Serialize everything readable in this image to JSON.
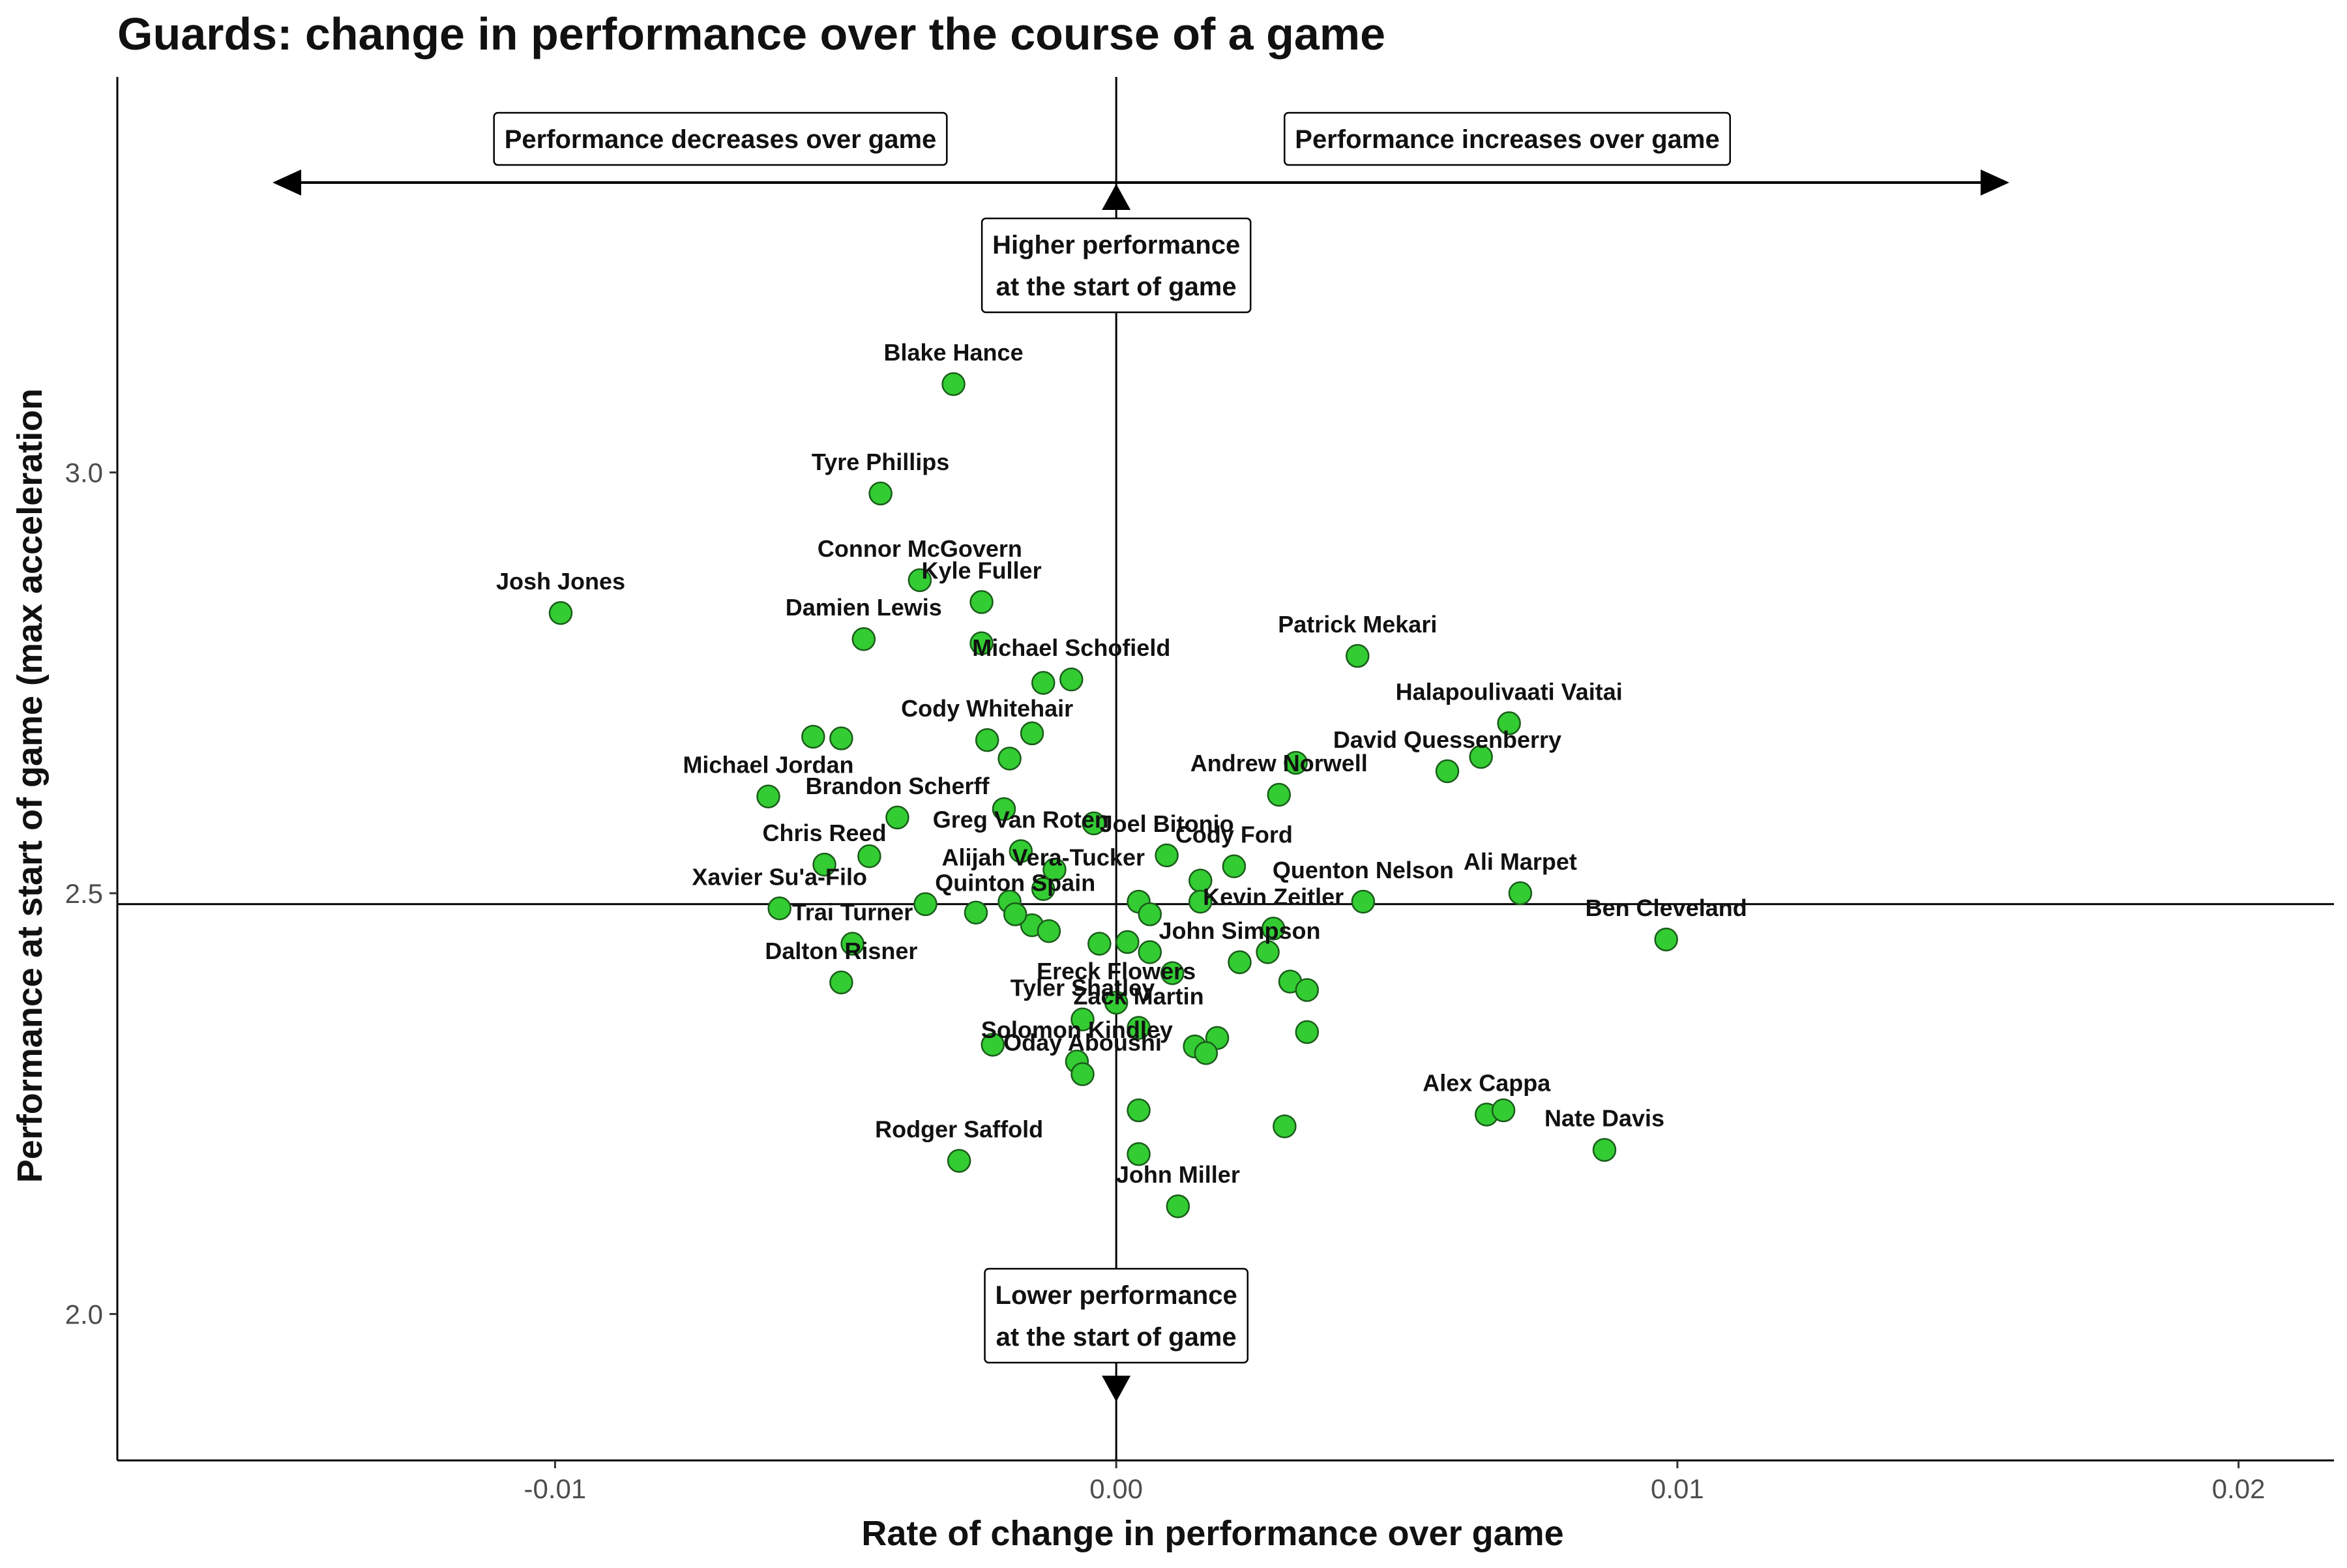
{
  "chart_data": {
    "type": "scatter",
    "title": "Guards: change in performance over the course of a game",
    "xlabel": "Rate of change in performance over game",
    "ylabel": "Performance at start of game (max acceleration",
    "xlim": [
      -0.0178,
      0.0217
    ],
    "ylim": [
      1.826,
      3.47
    ],
    "x_ticks": [
      -0.01,
      0.0,
      0.01,
      0.02
    ],
    "x_tick_labels": [
      "-0.01",
      "0.00",
      "0.01",
      "0.02"
    ],
    "y_ticks": [
      2.0,
      2.5,
      3.0
    ],
    "y_tick_labels": [
      "2.0",
      "2.5",
      "3.0"
    ],
    "reference_lines": {
      "x": 0.0,
      "y": 2.487
    },
    "grid": false,
    "point_color": "#33cc33",
    "point_stroke": "#1a5c1a",
    "annotations": {
      "left": "Performance decreases over game",
      "right": "Performance increases over game",
      "top": [
        "Higher performance",
        "at the start of game"
      ],
      "bottom": [
        "Lower performance",
        "at the start of game"
      ]
    },
    "points": [
      {
        "x": -0.0029,
        "y": 3.105,
        "label": "Blake Hance"
      },
      {
        "x": -0.0042,
        "y": 2.975,
        "label": "Tyre Phillips"
      },
      {
        "x": -0.0099,
        "y": 2.833,
        "label": "Josh Jones"
      },
      {
        "x": -0.0035,
        "y": 2.872,
        "label": "Connor McGovern"
      },
      {
        "x": -0.0024,
        "y": 2.846,
        "label": "Kyle Fuller"
      },
      {
        "x": -0.0045,
        "y": 2.802,
        "label": "Damien Lewis"
      },
      {
        "x": -0.0024,
        "y": 2.797,
        "label": ""
      },
      {
        "x": -0.0013,
        "y": 2.75,
        "label": ""
      },
      {
        "x": -0.0008,
        "y": 2.754,
        "label": "Michael Schofield"
      },
      {
        "x": 0.0043,
        "y": 2.782,
        "label": "Patrick Mekari"
      },
      {
        "x": 0.007,
        "y": 2.702,
        "label": "Halapoulivaati Vaitai"
      },
      {
        "x": 0.0065,
        "y": 2.662,
        "label": ""
      },
      {
        "x": 0.0059,
        "y": 2.645,
        "label": "David Quessenberry"
      },
      {
        "x": -0.0054,
        "y": 2.686,
        "label": ""
      },
      {
        "x": -0.0049,
        "y": 2.684,
        "label": ""
      },
      {
        "x": -0.0023,
        "y": 2.682,
        "label": "Cody Whitehair"
      },
      {
        "x": -0.0015,
        "y": 2.69,
        "label": ""
      },
      {
        "x": -0.0019,
        "y": 2.66,
        "label": ""
      },
      {
        "x": 0.0032,
        "y": 2.655,
        "label": ""
      },
      {
        "x": 0.0029,
        "y": 2.617,
        "label": "Andrew Norwell"
      },
      {
        "x": -0.0062,
        "y": 2.615,
        "label": "Michael Jordan"
      },
      {
        "x": -0.0039,
        "y": 2.59,
        "label": "Brandon Scherff"
      },
      {
        "x": -0.002,
        "y": 2.6,
        "label": ""
      },
      {
        "x": -0.0004,
        "y": 2.583,
        "label": ""
      },
      {
        "x": -0.0052,
        "y": 2.534,
        "label": "Chris Reed"
      },
      {
        "x": -0.0044,
        "y": 2.544,
        "label": ""
      },
      {
        "x": -0.0017,
        "y": 2.55,
        "label": "Greg Van Roten"
      },
      {
        "x": 0.0009,
        "y": 2.545,
        "label": "Joel Bitonio"
      },
      {
        "x": -0.0011,
        "y": 2.528,
        "label": ""
      },
      {
        "x": 0.0021,
        "y": 2.532,
        "label": "Cody Ford"
      },
      {
        "x": 0.0015,
        "y": 2.515,
        "label": ""
      },
      {
        "x": -0.0013,
        "y": 2.505,
        "label": "Alijah Vera-Tucker"
      },
      {
        "x": -0.006,
        "y": 2.482,
        "label": "Xavier Su'a-Filo"
      },
      {
        "x": -0.0034,
        "y": 2.487,
        "label": ""
      },
      {
        "x": -0.0025,
        "y": 2.477,
        "label": ""
      },
      {
        "x": -0.0019,
        "y": 2.49,
        "label": ""
      },
      {
        "x": -0.0015,
        "y": 2.462,
        "label": ""
      },
      {
        "x": -0.0012,
        "y": 2.455,
        "label": ""
      },
      {
        "x": -0.0018,
        "y": 2.475,
        "label": "Quinton Spain"
      },
      {
        "x": 0.0004,
        "y": 2.49,
        "label": ""
      },
      {
        "x": 0.0006,
        "y": 2.475,
        "label": ""
      },
      {
        "x": 0.0015,
        "y": 2.49,
        "label": ""
      },
      {
        "x": 0.0044,
        "y": 2.49,
        "label": "Quenton Nelson"
      },
      {
        "x": 0.0072,
        "y": 2.5,
        "label": "Ali Marpet"
      },
      {
        "x": 0.0098,
        "y": 2.445,
        "label": "Ben Cleveland"
      },
      {
        "x": 0.0028,
        "y": 2.458,
        "label": "Kevin Zeitler"
      },
      {
        "x": -0.0047,
        "y": 2.44,
        "label": "Trai Turner"
      },
      {
        "x": -0.0003,
        "y": 2.44,
        "label": ""
      },
      {
        "x": 0.0002,
        "y": 2.442,
        "label": ""
      },
      {
        "x": 0.0006,
        "y": 2.43,
        "label": ""
      },
      {
        "x": 0.0027,
        "y": 2.43,
        "label": ""
      },
      {
        "x": 0.0022,
        "y": 2.418,
        "label": "John Simpson"
      },
      {
        "x": 0.001,
        "y": 2.405,
        "label": ""
      },
      {
        "x": -0.0049,
        "y": 2.394,
        "label": "Dalton Risner"
      },
      {
        "x": 0.0031,
        "y": 2.395,
        "label": ""
      },
      {
        "x": 0.0034,
        "y": 2.385,
        "label": ""
      },
      {
        "x": 0.0,
        "y": 2.37,
        "label": "Ereck Flowers"
      },
      {
        "x": -0.0006,
        "y": 2.35,
        "label": "Tyler Shatley"
      },
      {
        "x": 0.0004,
        "y": 2.34,
        "label": "Zack Martin"
      },
      {
        "x": 0.0034,
        "y": 2.335,
        "label": ""
      },
      {
        "x": 0.0018,
        "y": 2.328,
        "label": ""
      },
      {
        "x": -0.0022,
        "y": 2.32,
        "label": ""
      },
      {
        "x": 0.0014,
        "y": 2.318,
        "label": ""
      },
      {
        "x": 0.0016,
        "y": 2.31,
        "label": ""
      },
      {
        "x": -0.0007,
        "y": 2.3,
        "label": "Solomon Kindley"
      },
      {
        "x": -0.0006,
        "y": 2.285,
        "label": "Oday Aboushi"
      },
      {
        "x": 0.0004,
        "y": 2.242,
        "label": ""
      },
      {
        "x": 0.003,
        "y": 2.223,
        "label": ""
      },
      {
        "x": 0.0066,
        "y": 2.237,
        "label": "Alex Cappa"
      },
      {
        "x": 0.0069,
        "y": 2.242,
        "label": ""
      },
      {
        "x": 0.0087,
        "y": 2.195,
        "label": "Nate Davis"
      },
      {
        "x": 0.0004,
        "y": 2.19,
        "label": ""
      },
      {
        "x": -0.0028,
        "y": 2.182,
        "label": "Rodger Saffold"
      },
      {
        "x": 0.0011,
        "y": 2.128,
        "label": "John Miller"
      }
    ]
  }
}
